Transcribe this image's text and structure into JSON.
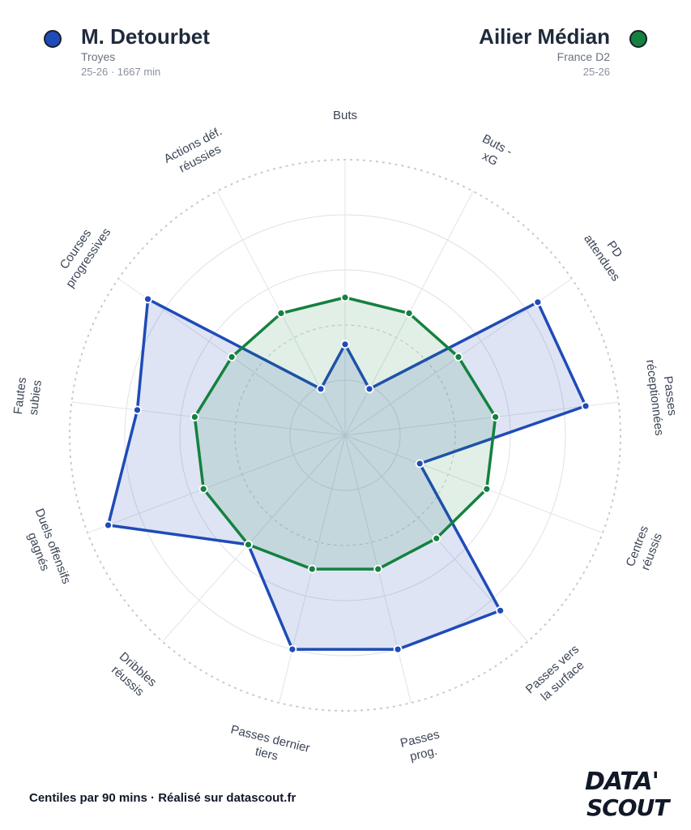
{
  "player": {
    "name": "M. Detourbet",
    "club": "Troyes",
    "meta": "25-26 · 1667 min",
    "color": "#1f4bb8"
  },
  "reference": {
    "name": "Ailier Médian",
    "league": "France D2",
    "season": "25-26",
    "color": "#14813f"
  },
  "footer": "Centiles par 90 mins · Réalisé sur datascout.fr",
  "logo": {
    "line1": "DATA'",
    "line2": "SCOUT"
  },
  "chart_data": {
    "type": "radar",
    "range": [
      0,
      100
    ],
    "axes": [
      "Buts",
      "Buts - xG",
      "PD attendues",
      "Passes réceptionnées",
      "Centres réussis",
      "Passes vers la surface",
      "Passes prog.",
      "Passes dernier tiers",
      "Dribbles réussis",
      "Duels offensifs gagnés",
      "Fautes subies",
      "Courses progressives",
      "Actions déf. réussies"
    ],
    "axis_label_lines": [
      [
        "Buts"
      ],
      [
        "Buts -",
        "xG"
      ],
      [
        "PD",
        "attendues"
      ],
      [
        "Passes",
        "réceptionnées"
      ],
      [
        "Centres",
        "réussis"
      ],
      [
        "Passes vers",
        "la surface"
      ],
      [
        "Passes",
        "prog."
      ],
      [
        "Passes dernier",
        "tiers"
      ],
      [
        "Dribbles",
        "réussis"
      ],
      [
        "Duels offensifs",
        "gagnés"
      ],
      [
        "Fautes",
        "subies"
      ],
      [
        "Courses",
        "progressives"
      ],
      [
        "Actions déf.",
        "réussies"
      ]
    ],
    "series": [
      {
        "name": "M. Detourbet",
        "values": [
          33,
          19,
          85,
          88,
          29,
          85,
          80,
          80,
          53,
          92,
          76,
          87,
          19
        ]
      },
      {
        "name": "Ailier Médian",
        "values": [
          50,
          50,
          50,
          55,
          55,
          50,
          50,
          50,
          53,
          55,
          55,
          50,
          50
        ]
      }
    ]
  }
}
